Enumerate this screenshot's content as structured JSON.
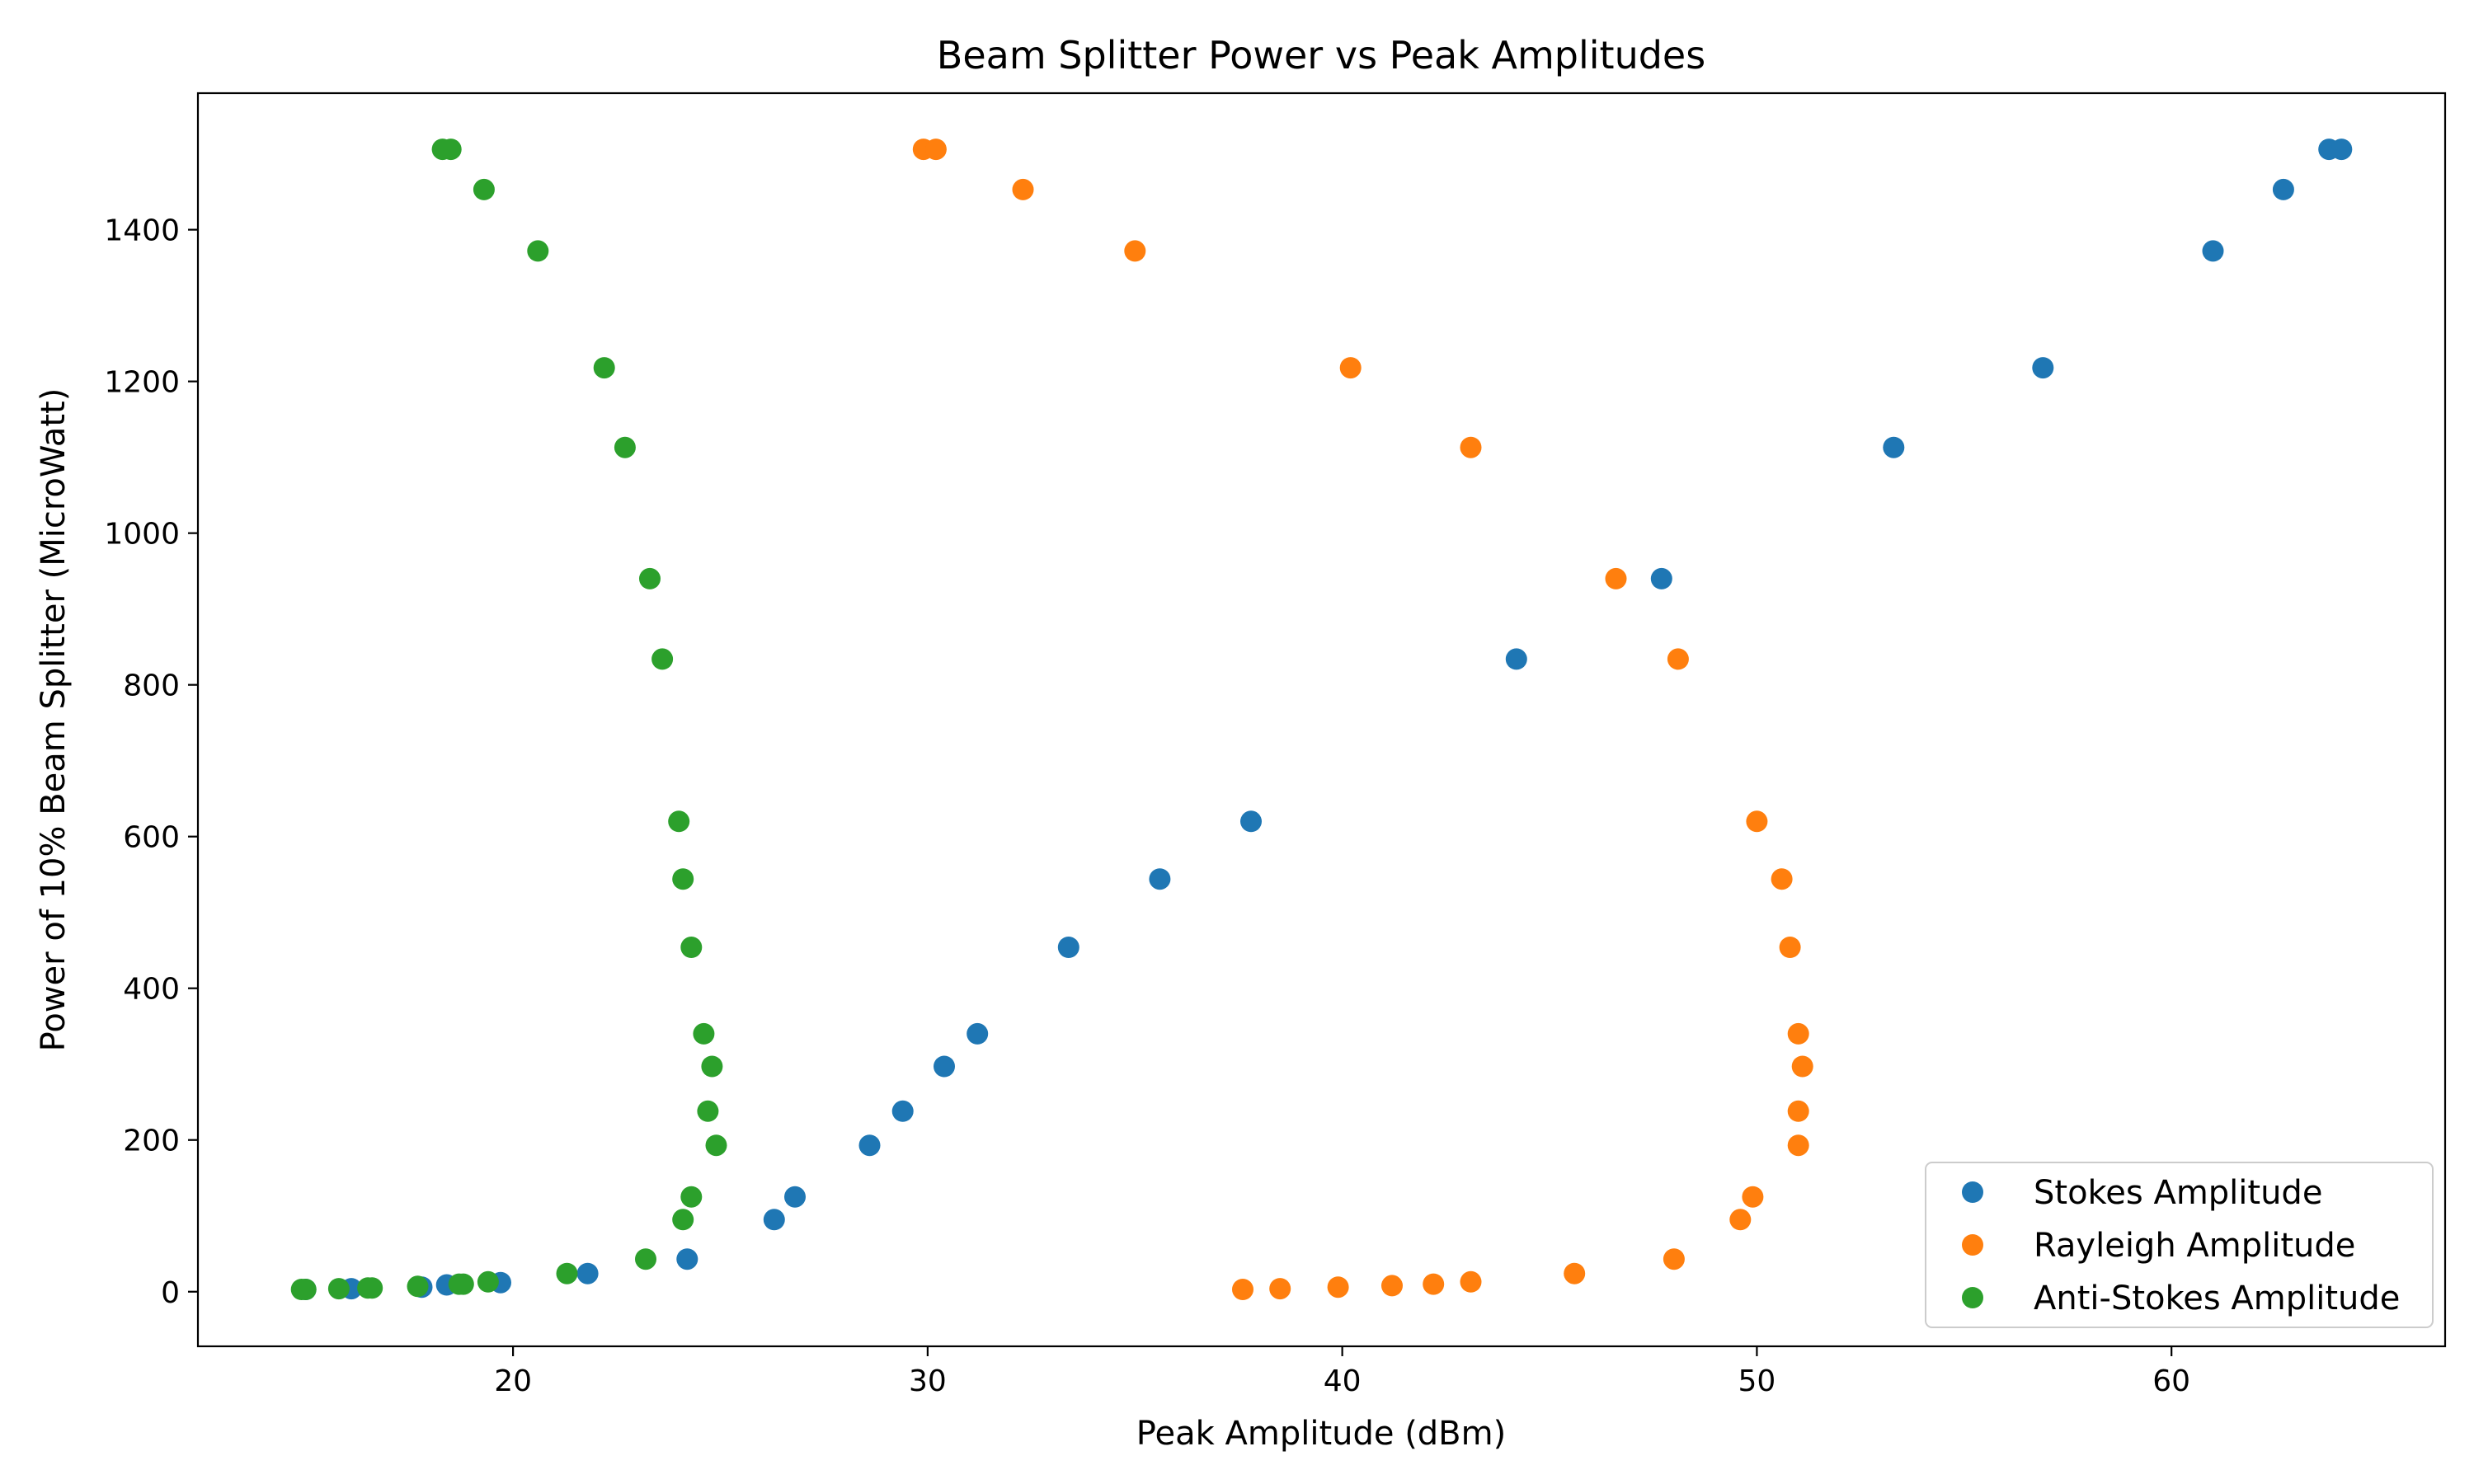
{
  "chart_data": {
    "type": "scatter",
    "title": "Beam Splitter Power vs Peak Amplitudes",
    "xlabel": "Peak Amplitude (dBm)",
    "ylabel": "Power of 10% Beam Splitter (MicroWatt)",
    "xlim": [
      12.4,
      66.6
    ],
    "ylim": [
      -72,
      1580
    ],
    "xticks": [
      20,
      30,
      40,
      50,
      60
    ],
    "yticks": [
      0,
      200,
      400,
      600,
      800,
      1000,
      1200,
      1400
    ],
    "grid": false,
    "legend_position": "lower right",
    "series": [
      {
        "name": "Stokes Amplitude",
        "color": "#1f77b4",
        "points": [
          [
            15.0,
            3
          ],
          [
            16.1,
            4
          ],
          [
            17.8,
            6
          ],
          [
            18.4,
            9
          ],
          [
            19.7,
            12
          ],
          [
            21.8,
            24
          ],
          [
            24.2,
            43
          ],
          [
            26.3,
            95
          ],
          [
            26.8,
            125
          ],
          [
            28.6,
            193
          ],
          [
            29.4,
            238
          ],
          [
            30.4,
            297
          ],
          [
            31.2,
            340
          ],
          [
            33.4,
            454
          ],
          [
            35.6,
            544
          ],
          [
            37.8,
            620
          ],
          [
            44.2,
            834
          ],
          [
            47.7,
            940
          ],
          [
            53.3,
            1113
          ],
          [
            56.9,
            1218
          ],
          [
            61.0,
            1372
          ],
          [
            62.7,
            1453
          ],
          [
            63.8,
            1506
          ],
          [
            64.1,
            1506
          ]
        ]
      },
      {
        "name": "Rayleigh Amplitude",
        "color": "#ff7f0e",
        "points": [
          [
            37.6,
            3
          ],
          [
            38.5,
            4
          ],
          [
            39.9,
            6
          ],
          [
            41.2,
            8
          ],
          [
            42.2,
            10
          ],
          [
            43.1,
            13
          ],
          [
            45.6,
            24
          ],
          [
            48.0,
            43
          ],
          [
            49.6,
            95
          ],
          [
            49.9,
            125
          ],
          [
            51.0,
            193
          ],
          [
            51.0,
            238
          ],
          [
            51.1,
            297
          ],
          [
            51.0,
            340
          ],
          [
            50.8,
            454
          ],
          [
            50.6,
            544
          ],
          [
            50.0,
            620
          ],
          [
            48.1,
            834
          ],
          [
            46.6,
            940
          ],
          [
            43.1,
            1113
          ],
          [
            40.2,
            1218
          ],
          [
            35.0,
            1372
          ],
          [
            32.3,
            1453
          ],
          [
            29.9,
            1506
          ],
          [
            30.2,
            1506
          ]
        ]
      },
      {
        "name": "Anti-Stokes Amplitude",
        "color": "#2ca02c",
        "points": [
          [
            14.9,
            3
          ],
          [
            15.0,
            3
          ],
          [
            15.8,
            4
          ],
          [
            16.5,
            5
          ],
          [
            16.6,
            5
          ],
          [
            17.7,
            7
          ],
          [
            18.7,
            10
          ],
          [
            18.8,
            10
          ],
          [
            19.4,
            13
          ],
          [
            21.3,
            24
          ],
          [
            23.2,
            43
          ],
          [
            24.1,
            95
          ],
          [
            24.3,
            125
          ],
          [
            24.9,
            193
          ],
          [
            24.7,
            238
          ],
          [
            24.8,
            297
          ],
          [
            24.6,
            340
          ],
          [
            24.3,
            454
          ],
          [
            24.1,
            544
          ],
          [
            24.0,
            620
          ],
          [
            23.6,
            834
          ],
          [
            23.3,
            940
          ],
          [
            22.7,
            1113
          ],
          [
            22.2,
            1218
          ],
          [
            20.6,
            1372
          ],
          [
            19.3,
            1453
          ],
          [
            18.3,
            1506
          ],
          [
            18.5,
            1506
          ]
        ]
      }
    ]
  }
}
